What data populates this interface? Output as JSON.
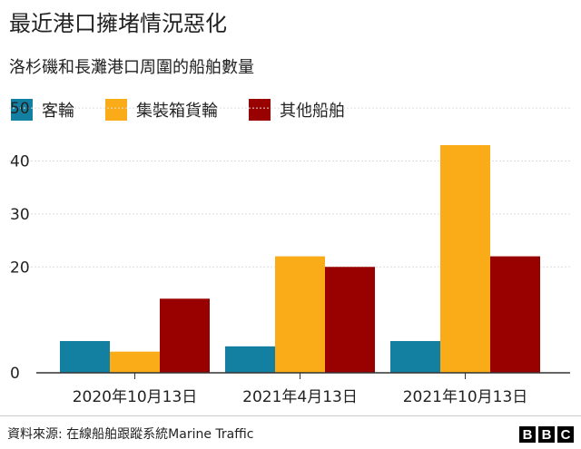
{
  "title": "最近港口擁堵情況惡化",
  "subtitle": "洛杉磯和長灘港口周圍的船舶數量",
  "source": "資料來源: 在線船舶跟蹤系統Marine Traffic",
  "logo": [
    "B",
    "B",
    "C"
  ],
  "colors": {
    "passenger": "#1380A1",
    "container": "#FAAB18",
    "other": "#990000",
    "grid": "#dddddd",
    "axis": "#333333"
  },
  "chart_data": {
    "type": "bar",
    "title": "最近港口擁堵情況惡化",
    "subtitle": "洛杉磯和長灘港口周圍的船舶數量",
    "categories": [
      "2020年10月13日",
      "2021年4月13日",
      "2021年10月13日"
    ],
    "series": [
      {
        "name": "客輪",
        "values": [
          6,
          5,
          6
        ]
      },
      {
        "name": "集裝箱貨輪",
        "values": [
          4,
          22,
          43
        ]
      },
      {
        "name": "其他船舶",
        "values": [
          14,
          20,
          22
        ]
      }
    ],
    "ylim": [
      0,
      43
    ],
    "yticks": [
      0,
      20,
      30,
      40,
      50
    ],
    "grid": true,
    "legend_position": "top-left"
  }
}
